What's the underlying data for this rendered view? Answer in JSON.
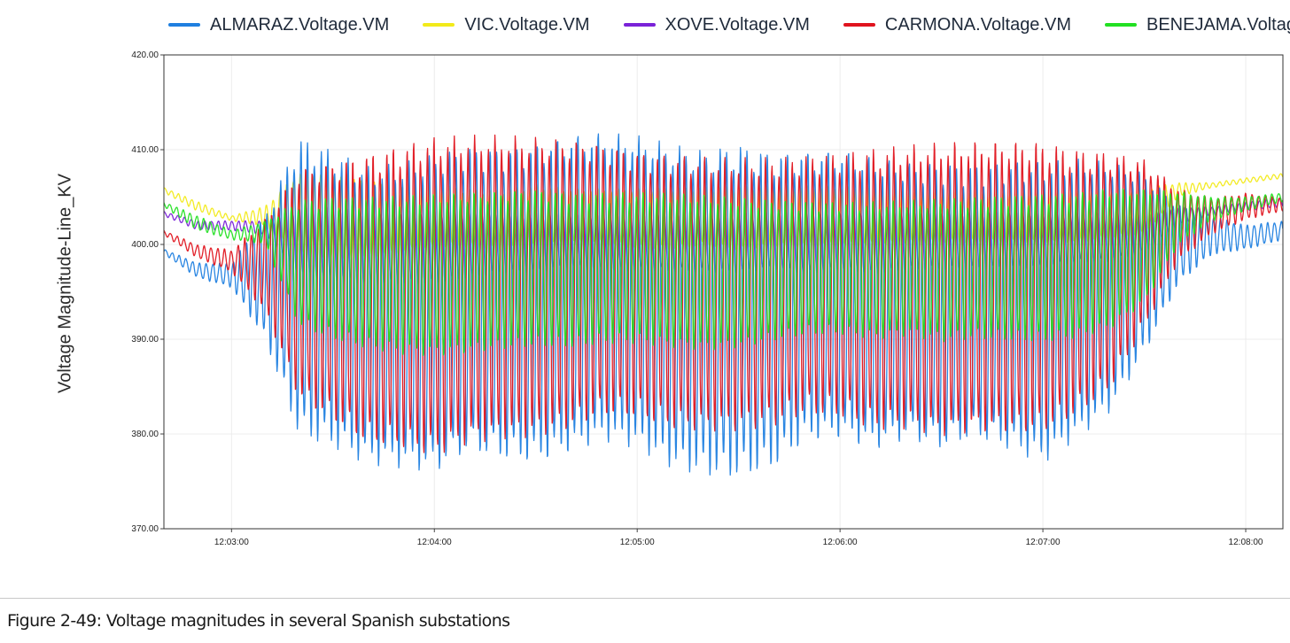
{
  "caption": "Figure 2-49: Voltage magnitudes in several Spanish substations",
  "chart_data": {
    "type": "line",
    "title": "",
    "xlabel": "",
    "ylabel": "Voltage Magnitude-Line_KV",
    "ylim": [
      370,
      420
    ],
    "yticks": [
      "370.00",
      "380.00",
      "390.00",
      "400.00",
      "410.00",
      "420.00"
    ],
    "xticks": [
      "12:03:00",
      "12:04:00",
      "12:05:00",
      "12:06:00",
      "12:07:00",
      "12:08:00"
    ],
    "xlim": [
      "12:02:40",
      "12:08:11"
    ],
    "grid": true,
    "legend_position": "top",
    "series": [
      {
        "name": "ALMARAZ.Voltage.VM",
        "color": "#1f7fe0",
        "x": [
          "12:02:40",
          "12:02:50",
          "12:03:00",
          "12:03:10",
          "12:03:20",
          "12:03:30",
          "12:03:40",
          "12:03:50",
          "12:04:00",
          "12:04:10",
          "12:04:20",
          "12:04:30",
          "12:04:40",
          "12:04:50",
          "12:05:00",
          "12:05:10",
          "12:05:20",
          "12:05:30",
          "12:05:40",
          "12:05:50",
          "12:06:00",
          "12:06:10",
          "12:06:20",
          "12:06:30",
          "12:06:40",
          "12:06:50",
          "12:07:00",
          "12:07:10",
          "12:07:20",
          "12:07:30",
          "12:07:40",
          "12:07:50",
          "12:08:00",
          "12:08:11"
        ],
        "low": [
          399.0,
          396.5,
          395.5,
          390.0,
          379.5,
          378.0,
          376.0,
          375.5,
          375.0,
          377.5,
          377.0,
          377.0,
          378.5,
          380.0,
          379.5,
          377.5,
          376.5,
          376.0,
          376.5,
          379.0,
          379.0,
          377.5,
          378.5,
          377.5,
          379.0,
          378.0,
          377.0,
          380.0,
          383.0,
          389.0,
          396.0,
          399.0,
          399.5,
          400.5
        ],
        "high": [
          399.5,
          398.0,
          398.0,
          403.0,
          411.5,
          410.5,
          409.0,
          409.5,
          410.5,
          411.0,
          410.5,
          410.5,
          411.0,
          411.0,
          410.5,
          409.5,
          409.0,
          410.0,
          409.5,
          410.0,
          410.5,
          410.0,
          409.5,
          409.5,
          409.0,
          409.0,
          408.5,
          408.5,
          408.0,
          407.0,
          404.0,
          403.0,
          402.0,
          402.5
        ]
      },
      {
        "name": "VIC.Voltage.VM",
        "color": "#f2ea1a",
        "x": [
          "12:02:40",
          "12:02:50",
          "12:03:00",
          "12:03:10",
          "12:03:20",
          "12:03:30",
          "12:03:40",
          "12:03:50",
          "12:04:00",
          "12:04:10",
          "12:04:20",
          "12:04:30",
          "12:04:40",
          "12:04:50",
          "12:05:00",
          "12:05:10",
          "12:05:20",
          "12:05:30",
          "12:05:40",
          "12:05:50",
          "12:06:00",
          "12:06:10",
          "12:06:20",
          "12:06:30",
          "12:06:40",
          "12:06:50",
          "12:07:00",
          "12:07:10",
          "12:07:20",
          "12:07:30",
          "12:07:40",
          "12:07:50",
          "12:08:00",
          "12:08:11"
        ],
        "low": [
          405.5,
          403.5,
          402.5,
          402.0,
          399.0,
          398.0,
          398.5,
          399.0,
          399.5,
          399.5,
          399.0,
          399.5,
          400.0,
          400.0,
          399.5,
          399.5,
          400.0,
          399.5,
          400.0,
          400.0,
          400.0,
          400.0,
          400.0,
          400.0,
          400.0,
          400.0,
          400.0,
          400.0,
          400.5,
          401.0,
          405.0,
          406.0,
          406.5,
          407.0
        ],
        "high": [
          406.0,
          404.5,
          403.0,
          404.0,
          407.5,
          407.5,
          407.0,
          406.5,
          406.5,
          406.0,
          406.0,
          406.5,
          406.0,
          406.0,
          406.0,
          406.0,
          406.0,
          406.0,
          406.0,
          406.0,
          406.0,
          406.0,
          406.0,
          406.0,
          406.0,
          406.0,
          406.0,
          406.0,
          406.0,
          406.0,
          406.5,
          406.5,
          407.0,
          407.5
        ]
      },
      {
        "name": "XOVE.Voltage.VM",
        "color": "#7a22d8",
        "x": [
          "12:02:40",
          "12:02:50",
          "12:03:00",
          "12:03:10",
          "12:03:20",
          "12:03:30",
          "12:03:40",
          "12:03:50",
          "12:04:00",
          "12:04:10",
          "12:04:20",
          "12:04:30",
          "12:04:40",
          "12:04:50",
          "12:05:00",
          "12:05:10",
          "12:05:20",
          "12:05:30",
          "12:05:40",
          "12:05:50",
          "12:06:00",
          "12:06:10",
          "12:06:20",
          "12:06:30",
          "12:06:40",
          "12:06:50",
          "12:07:00",
          "12:07:10",
          "12:07:20",
          "12:07:30",
          "12:07:40",
          "12:07:50",
          "12:08:00",
          "12:08:11"
        ],
        "low": [
          403.0,
          401.5,
          401.5,
          401.0,
          397.0,
          396.5,
          396.0,
          396.0,
          396.0,
          396.5,
          397.0,
          397.0,
          397.5,
          397.0,
          397.0,
          397.0,
          397.0,
          397.0,
          397.5,
          397.0,
          397.5,
          397.0,
          397.5,
          397.5,
          397.5,
          397.5,
          397.5,
          398.0,
          398.0,
          399.0,
          402.0,
          403.0,
          403.5,
          404.0
        ],
        "high": [
          403.5,
          402.5,
          402.5,
          402.5,
          404.0,
          404.0,
          403.5,
          403.5,
          403.5,
          403.5,
          403.5,
          403.5,
          403.5,
          403.5,
          403.5,
          403.5,
          403.5,
          403.5,
          403.5,
          403.5,
          403.5,
          403.5,
          403.5,
          403.5,
          403.5,
          403.5,
          403.5,
          403.5,
          403.5,
          403.5,
          404.0,
          404.0,
          404.5,
          405.0
        ]
      },
      {
        "name": "CARMONA.Voltage.VM",
        "color": "#e0141e",
        "x": [
          "12:02:40",
          "12:02:50",
          "12:03:00",
          "12:03:10",
          "12:03:20",
          "12:03:30",
          "12:03:40",
          "12:03:50",
          "12:04:00",
          "12:04:10",
          "12:04:20",
          "12:04:30",
          "12:04:40",
          "12:04:50",
          "12:05:00",
          "12:05:10",
          "12:05:20",
          "12:05:30",
          "12:05:40",
          "12:05:50",
          "12:06:00",
          "12:06:10",
          "12:06:20",
          "12:06:30",
          "12:06:40",
          "12:06:50",
          "12:07:00",
          "12:07:10",
          "12:07:20",
          "12:07:30",
          "12:07:40",
          "12:07:50",
          "12:08:00",
          "12:08:11"
        ],
        "low": [
          401.0,
          398.5,
          397.0,
          392.5,
          383.0,
          381.0,
          379.0,
          379.0,
          378.5,
          380.0,
          380.5,
          380.5,
          381.0,
          382.0,
          381.5,
          380.0,
          379.5,
          379.5,
          380.0,
          381.5,
          381.5,
          380.5,
          381.0,
          380.5,
          381.0,
          381.0,
          381.0,
          382.5,
          385.0,
          391.0,
          398.0,
          401.0,
          402.5,
          403.5
        ],
        "high": [
          401.5,
          400.0,
          399.5,
          403.0,
          408.5,
          409.0,
          409.5,
          410.0,
          410.5,
          410.5,
          410.5,
          410.5,
          410.5,
          410.5,
          410.0,
          410.0,
          410.0,
          410.0,
          410.0,
          410.0,
          410.0,
          410.0,
          410.0,
          410.0,
          410.0,
          410.0,
          410.0,
          409.5,
          409.5,
          409.0,
          406.0,
          405.0,
          405.5,
          405.0
        ]
      },
      {
        "name": "BENEJAMA.Voltage.VM",
        "color": "#22e022",
        "x": [
          "12:02:40",
          "12:02:50",
          "12:03:00",
          "12:03:10",
          "12:03:20",
          "12:03:30",
          "12:03:40",
          "12:03:50",
          "12:04:00",
          "12:04:10",
          "12:04:20",
          "12:04:30",
          "12:04:40",
          "12:04:50",
          "12:05:00",
          "12:05:10",
          "12:05:20",
          "12:05:30",
          "12:05:40",
          "12:05:50",
          "12:06:00",
          "12:06:10",
          "12:06:20",
          "12:06:30",
          "12:06:40",
          "12:06:50",
          "12:07:00",
          "12:07:10",
          "12:07:20",
          "12:07:30",
          "12:07:40",
          "12:07:50",
          "12:08:00",
          "12:08:11"
        ],
        "low": [
          404.0,
          401.5,
          400.5,
          400.0,
          391.0,
          389.5,
          388.5,
          388.0,
          388.0,
          388.5,
          389.0,
          389.5,
          389.5,
          390.0,
          390.0,
          389.5,
          389.0,
          389.0,
          389.5,
          390.0,
          390.0,
          389.5,
          390.0,
          389.5,
          390.0,
          390.0,
          390.0,
          390.5,
          391.5,
          394.0,
          400.0,
          402.5,
          403.5,
          404.5
        ],
        "high": [
          404.5,
          403.0,
          401.5,
          402.5,
          405.0,
          405.5,
          405.5,
          405.5,
          405.5,
          405.5,
          405.5,
          405.5,
          405.0,
          405.0,
          405.0,
          405.0,
          405.0,
          405.0,
          405.0,
          405.0,
          405.0,
          405.0,
          405.0,
          405.0,
          405.0,
          405.0,
          405.0,
          405.0,
          405.5,
          405.5,
          405.5,
          405.0,
          405.0,
          405.5
        ]
      }
    ]
  }
}
